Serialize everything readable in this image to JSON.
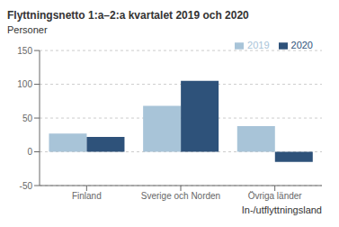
{
  "chart_data": {
    "type": "bar",
    "title": "Flyttningsnetto 1:a–2:a kvartalet 2019 och 2020",
    "ylabel": "Personer",
    "xlabel": "In-/utflyttningsland",
    "categories": [
      "Finland",
      "Sverige och Norden",
      "Övriga länder"
    ],
    "series": [
      {
        "name": "2019",
        "color": "#a8c4d8",
        "values": [
          27,
          68,
          38
        ]
      },
      {
        "name": "2020",
        "color": "#2e527a",
        "values": [
          22,
          105,
          -15
        ]
      }
    ],
    "ylim": [
      -50,
      150
    ],
    "yticks": [
      -50,
      0,
      50,
      100,
      150
    ],
    "grid": true,
    "legend": "upper right"
  }
}
